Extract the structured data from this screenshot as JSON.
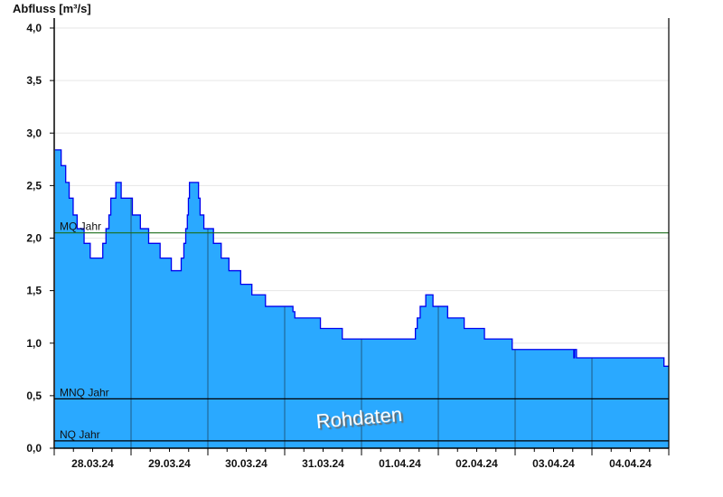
{
  "chart_data": {
    "type": "area",
    "step": "after",
    "ylabel": "Abfluss [m³/s]",
    "ylim": [
      0,
      4.0
    ],
    "yticks": [
      "0,0",
      "0,5",
      "1,0",
      "1,5",
      "2,0",
      "2,5",
      "3,0",
      "3,5",
      "4,0"
    ],
    "xlim": [
      "2024-03-28T00:00",
      "2024-04-05T00:00"
    ],
    "xtick_labels": [
      "28.03.24",
      "29.03.24",
      "30.03.24",
      "31.03.24",
      "01.04.24",
      "02.04.24",
      "03.04.24",
      "04.04.24"
    ],
    "grid": true,
    "watermark": "Rohdaten",
    "colors": {
      "fill": "#2aa9ff",
      "line": "#0000ee",
      "day_line": "#1f5a85",
      "mq": "#1a6e1a",
      "ref": "#000000",
      "grid": "#e6e6e6"
    },
    "reference_lines": [
      {
        "label": "MQ Jahr",
        "value": 2.05,
        "color": "mq"
      },
      {
        "label": "MNQ Jahr",
        "value": 0.47,
        "color": "ref"
      },
      {
        "label": "NQ Jahr",
        "value": 0.07,
        "color": "ref"
      }
    ],
    "series": [
      {
        "points": [
          [
            "2024-03-28T00:15",
            2.84
          ],
          [
            "2024-03-28T02:10",
            2.69
          ],
          [
            "2024-03-28T03:35",
            2.53
          ],
          [
            "2024-03-28T04:40",
            2.38
          ],
          [
            "2024-03-28T05:55",
            2.22
          ],
          [
            "2024-03-28T07:10",
            2.09
          ],
          [
            "2024-03-28T09:20",
            1.95
          ],
          [
            "2024-03-28T11:15",
            1.81
          ],
          [
            "2024-03-28T15:10",
            1.95
          ],
          [
            "2024-03-28T16:10",
            2.09
          ],
          [
            "2024-03-28T17:05",
            2.22
          ],
          [
            "2024-03-28T17:40",
            2.38
          ],
          [
            "2024-03-28T19:15",
            2.53
          ],
          [
            "2024-03-28T20:55",
            2.38
          ],
          [
            "2024-03-29T00:25",
            2.22
          ],
          [
            "2024-03-29T02:55",
            2.09
          ],
          [
            "2024-03-29T05:30",
            1.95
          ],
          [
            "2024-03-29T09:05",
            1.81
          ],
          [
            "2024-03-29T12:35",
            1.69
          ],
          [
            "2024-03-29T15:40",
            1.81
          ],
          [
            "2024-03-29T16:30",
            1.95
          ],
          [
            "2024-03-29T17:05",
            2.09
          ],
          [
            "2024-03-29T17:35",
            2.22
          ],
          [
            "2024-03-29T17:55",
            2.38
          ],
          [
            "2024-03-29T18:15",
            2.53
          ],
          [
            "2024-03-29T21:05",
            2.38
          ],
          [
            "2024-03-29T21:35",
            2.22
          ],
          [
            "2024-03-29T22:45",
            2.09
          ],
          [
            "2024-03-30T01:45",
            1.95
          ],
          [
            "2024-03-30T04:10",
            1.81
          ],
          [
            "2024-03-30T06:35",
            1.69
          ],
          [
            "2024-03-30T10:15",
            1.56
          ],
          [
            "2024-03-30T13:45",
            1.46
          ],
          [
            "2024-03-30T18:00",
            1.35
          ],
          [
            "2024-03-31T02:35",
            1.3
          ],
          [
            "2024-03-31T03:10",
            1.24
          ],
          [
            "2024-03-31T11:10",
            1.14
          ],
          [
            "2024-03-31T18:00",
            1.04
          ],
          [
            "2024-04-01T16:50",
            1.14
          ],
          [
            "2024-04-01T17:25",
            1.24
          ],
          [
            "2024-04-01T18:20",
            1.35
          ],
          [
            "2024-04-01T20:05",
            1.46
          ],
          [
            "2024-04-01T22:20",
            1.35
          ],
          [
            "2024-04-02T02:55",
            1.24
          ],
          [
            "2024-04-02T08:05",
            1.14
          ],
          [
            "2024-04-02T14:25",
            1.04
          ],
          [
            "2024-04-02T23:05",
            0.94
          ],
          [
            "2024-04-03T18:20",
            0.86
          ],
          [
            "2024-04-03T18:35",
            0.94
          ],
          [
            "2024-04-03T19:10",
            0.86
          ],
          [
            "2024-04-04T22:30",
            0.78
          ]
        ]
      }
    ]
  }
}
